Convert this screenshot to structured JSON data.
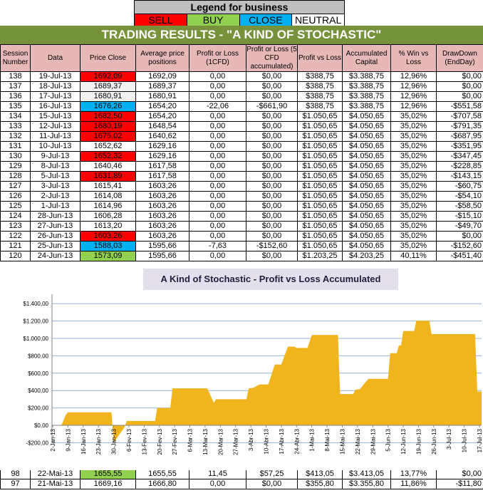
{
  "legend": {
    "title": "Legend for business",
    "items": [
      {
        "label": "SELL",
        "color": "#ff0000"
      },
      {
        "label": "BUY",
        "color": "#92d050"
      },
      {
        "label": "CLOSE",
        "color": "#00b0f0"
      },
      {
        "label": "NEUTRAL",
        "color": "#ffffff"
      }
    ]
  },
  "title": "TRADING RESULTS - \"A KIND OF STOCHASTIC\"",
  "columns": [
    "Session Number",
    "Data",
    "Price Close",
    "Average price positions",
    "Profit or Loss (1CFD)",
    "Profit or Loss (5 CFD accumulated)",
    "Profit vs Loss",
    "Accumulated Capital",
    "% Win vs Loss",
    "DrawDown (EndDay)"
  ],
  "rows": [
    {
      "cells": [
        "138",
        "19-Jul-13",
        "1692,09",
        "1692,09",
        "0,00",
        "$0,00",
        "$388,75",
        "$3.388,75",
        "12,96%",
        "$0,00"
      ],
      "signal": "sell"
    },
    {
      "cells": [
        "137",
        "18-Jul-13",
        "1689,37",
        "1689,37",
        "0,00",
        "$0,00",
        "$388,75",
        "$3.388,75",
        "12,96%",
        "$0,00"
      ],
      "signal": "grey"
    },
    {
      "cells": [
        "136",
        "17-Jul-13",
        "1680,91",
        "1680,91",
        "0,00",
        "$0,00",
        "$388,75",
        "$3.388,75",
        "12,96%",
        "$0,00"
      ],
      "signal": "grey"
    },
    {
      "cells": [
        "135",
        "16-Jul-13",
        "1676,26",
        "1654,20",
        "-22,06",
        "-$661,90",
        "$388,75",
        "$3.388,75",
        "12,96%",
        "-$551,58"
      ],
      "signal": "close"
    },
    {
      "cells": [
        "134",
        "15-Jul-13",
        "1682,50",
        "1654,20",
        "0,00",
        "$0,00",
        "$1.050,65",
        "$4.050,65",
        "35,02%",
        "-$707,58"
      ],
      "signal": "sell"
    },
    {
      "cells": [
        "133",
        "12-Jul-13",
        "1680,19",
        "1648,54",
        "0,00",
        "$0,00",
        "$1.050,65",
        "$4.050,65",
        "35,02%",
        "-$791,35"
      ],
      "signal": "sell"
    },
    {
      "cells": [
        "132",
        "11-Jul-13",
        "1675,02",
        "1640,62",
        "0,00",
        "$0,00",
        "$1.050,65",
        "$4.050,65",
        "35,02%",
        "-$687,95"
      ],
      "signal": "sell"
    },
    {
      "cells": [
        "131",
        "10-Jul-13",
        "1652,62",
        "1629,16",
        "0,00",
        "$0,00",
        "$1.050,65",
        "$4.050,65",
        "35,02%",
        "-$351,95"
      ],
      "signal": "neutral"
    },
    {
      "cells": [
        "130",
        "9-Jul-13",
        "1652,32",
        "1629,16",
        "0,00",
        "$0,00",
        "$1.050,65",
        "$4.050,65",
        "35,02%",
        "-$347,45"
      ],
      "signal": "sell"
    },
    {
      "cells": [
        "129",
        "8-Jul-13",
        "1640,46",
        "1617,58",
        "0,00",
        "$0,00",
        "$1.050,65",
        "$4.050,65",
        "35,02%",
        "-$228,85"
      ],
      "signal": "neutral"
    },
    {
      "cells": [
        "128",
        "5-Jul-13",
        "1631,89",
        "1617,58",
        "0,00",
        "$0,00",
        "$1.050,65",
        "$4.050,65",
        "35,02%",
        "-$143,15"
      ],
      "signal": "sell"
    },
    {
      "cells": [
        "127",
        "3-Jul-13",
        "1615,41",
        "1603,26",
        "0,00",
        "$0,00",
        "$1.050,65",
        "$4.050,65",
        "35,02%",
        "-$60,75"
      ],
      "signal": "neutral"
    },
    {
      "cells": [
        "126",
        "2-Jul-13",
        "1614,08",
        "1603,26",
        "0,00",
        "$0,00",
        "$1.050,65",
        "$4.050,65",
        "35,02%",
        "-$54,10"
      ],
      "signal": "neutral"
    },
    {
      "cells": [
        "125",
        "1-Jul-13",
        "1614,96",
        "1603,26",
        "0,00",
        "$0,00",
        "$1.050,65",
        "$4.050,65",
        "35,02%",
        "-$58,50"
      ],
      "signal": "neutral"
    },
    {
      "cells": [
        "124",
        "28-Jun-13",
        "1606,28",
        "1603,26",
        "0,00",
        "$0,00",
        "$1.050,65",
        "$4.050,65",
        "35,02%",
        "-$15,10"
      ],
      "signal": "neutral"
    },
    {
      "cells": [
        "123",
        "27-Jun-13",
        "1613,20",
        "1603,26",
        "0,00",
        "$0,00",
        "$1.050,65",
        "$4.050,65",
        "35,02%",
        "-$49,70"
      ],
      "signal": "neutral"
    },
    {
      "cells": [
        "122",
        "26-Jun-13",
        "1603,26",
        "1603,26",
        "0,00",
        "$0,00",
        "$1.050,65",
        "$4.050,65",
        "35,02%",
        "$0,00"
      ],
      "signal": "sell"
    },
    {
      "cells": [
        "121",
        "25-Jun-13",
        "1588,03",
        "1595,66",
        "-7,63",
        "-$152,60",
        "$1.050,65",
        "$4.050,65",
        "35,02%",
        "-$152,60"
      ],
      "signal": "close"
    },
    {
      "cells": [
        "120",
        "24-Jun-13",
        "1573,09",
        "1595,66",
        "0,00",
        "$0,00",
        "$1.203,25",
        "$4.203,25",
        "40,11%",
        "-$451,40"
      ],
      "signal": "buy"
    }
  ],
  "bottom_rows": [
    {
      "cells": [
        "98",
        "22-Mai-13",
        "1655,55",
        "1655,55",
        "11,45",
        "$57,25",
        "$413,05",
        "$3.413,05",
        "13,77%",
        "$0,00"
      ],
      "signal": "buy"
    },
    {
      "cells": [
        "97",
        "21-Mai-13",
        "1669,16",
        "1666,80",
        "0,00",
        "$0,00",
        "$355,80",
        "$3.355,80",
        "11,86%",
        "-$11,80"
      ],
      "signal": "neutral"
    }
  ],
  "signal_colors": {
    "sell": "#ff0000",
    "buy": "#92d050",
    "close": "#00b0f0",
    "neutral": "#ffffff",
    "grey": "#f2f2f2"
  },
  "chart_data": {
    "type": "area",
    "title": "A Kind of Stochastic - Profit vs Loss Accumulated",
    "color": "#f0b41c",
    "grid": true,
    "ylim": [
      -200,
      1400
    ],
    "yticks": [
      -200,
      0,
      200,
      400,
      600,
      800,
      1000,
      1200,
      1400
    ],
    "ytick_labels": [
      "-$200,00",
      "$0,00",
      "$200,00",
      "$400,00",
      "$600,00",
      "$800,00",
      "$1.000,00",
      "$1.200,00",
      "$1.400,00"
    ],
    "xlim": [
      "2013-01-02",
      "2013-07-17"
    ],
    "xtick_labels": [
      "2-Jan-13",
      "9-Jan-13",
      "16-Jan-13",
      "23-Jan-13",
      "30-Jan-13",
      "6-Fev-13",
      "13-Fev-13",
      "20-Fev-13",
      "27-Fev-13",
      "6-Mar-13",
      "13-Mar-13",
      "20-Mar-13",
      "27-Mar-13",
      "3-Abr-13",
      "10-Abr-13",
      "17-Abr-13",
      "24-Abr-13",
      "1-Mai-13",
      "8-Mai-13",
      "15-Mai-13",
      "22-Mai-13",
      "29-Mai-13",
      "5-Jun-13",
      "12-Jun-13",
      "19-Jun-13",
      "26-Jun-13",
      "3-Jul-13",
      "10-Jul-13",
      "17-Jul-13"
    ],
    "points": [
      [
        "2013-01-06",
        0
      ],
      [
        "2013-01-08",
        120
      ],
      [
        "2013-01-09",
        150
      ],
      [
        "2013-01-29",
        150
      ],
      [
        "2013-01-30",
        -200
      ],
      [
        "2013-02-04",
        -20
      ],
      [
        "2013-02-05",
        50
      ],
      [
        "2013-02-18",
        50
      ],
      [
        "2013-02-19",
        200
      ],
      [
        "2013-02-25",
        200
      ],
      [
        "2013-02-26",
        425
      ],
      [
        "2013-03-14",
        425
      ],
      [
        "2013-03-17",
        260
      ],
      [
        "2013-03-18",
        300
      ],
      [
        "2013-04-01",
        300
      ],
      [
        "2013-04-02",
        425
      ],
      [
        "2013-04-04",
        430
      ],
      [
        "2013-04-07",
        470
      ],
      [
        "2013-04-11",
        470
      ],
      [
        "2013-04-14",
        700
      ],
      [
        "2013-04-17",
        700
      ],
      [
        "2013-04-20",
        905
      ],
      [
        "2013-04-23",
        905
      ],
      [
        "2013-04-24",
        890
      ],
      [
        "2013-04-29",
        890
      ],
      [
        "2013-05-01",
        1040
      ],
      [
        "2013-05-13",
        1040
      ],
      [
        "2013-05-14",
        360
      ],
      [
        "2013-05-20",
        360
      ],
      [
        "2013-05-21",
        410
      ],
      [
        "2013-05-23",
        415
      ],
      [
        "2013-05-27",
        535
      ],
      [
        "2013-06-05",
        535
      ],
      [
        "2013-06-06",
        830
      ],
      [
        "2013-06-09",
        830
      ],
      [
        "2013-06-10",
        920
      ],
      [
        "2013-06-11",
        920
      ],
      [
        "2013-06-12",
        1085
      ],
      [
        "2013-06-17",
        1085
      ],
      [
        "2013-06-18",
        1203
      ],
      [
        "2013-06-24",
        1203
      ],
      [
        "2013-06-25",
        1050
      ],
      [
        "2013-07-15",
        1050
      ],
      [
        "2013-07-16",
        389
      ],
      [
        "2013-07-18",
        389
      ]
    ]
  }
}
